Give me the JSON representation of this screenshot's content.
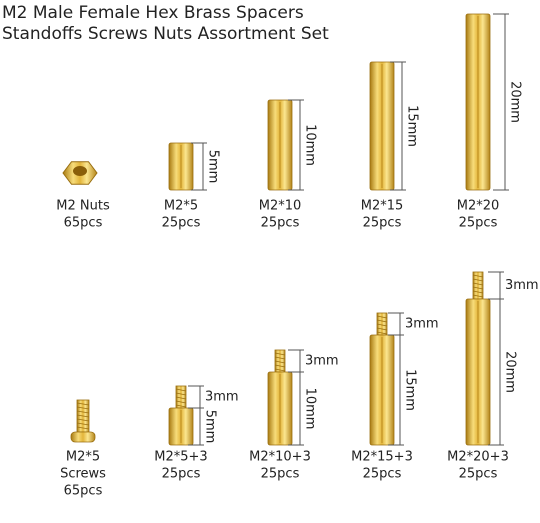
{
  "header": {
    "title": [
      "M2 Male Female Hex Brass Spacers",
      "Standoffs Screws Nuts Assortment Set"
    ]
  },
  "rows": [
    {
      "items": [
        {
          "lines": [
            "M2 Nuts",
            "65pcs"
          ],
          "dims": []
        },
        {
          "lines": [
            "M2*5",
            "25pcs"
          ],
          "dims": [
            "5mm"
          ]
        },
        {
          "lines": [
            "M2*10",
            "25pcs"
          ],
          "dims": [
            "10mm"
          ]
        },
        {
          "lines": [
            "M2*15",
            "25pcs"
          ],
          "dims": [
            "15mm"
          ]
        },
        {
          "lines": [
            "M2*20",
            "25pcs"
          ],
          "dims": [
            "20mm"
          ]
        }
      ]
    },
    {
      "items": [
        {
          "lines": [
            "M2*5",
            "Screws",
            "65pcs"
          ],
          "dims": []
        },
        {
          "lines": [
            "M2*5+3",
            "25pcs"
          ],
          "dims": [
            "3mm",
            "5mm"
          ]
        },
        {
          "lines": [
            "M2*10+3",
            "25pcs"
          ],
          "dims": [
            "3mm",
            "10mm"
          ]
        },
        {
          "lines": [
            "M2*15+3",
            "25pcs"
          ],
          "dims": [
            "3mm",
            "15mm"
          ]
        },
        {
          "lines": [
            "M2*20+3",
            "25pcs"
          ],
          "dims": [
            "3mm",
            "20mm"
          ]
        }
      ]
    }
  ]
}
